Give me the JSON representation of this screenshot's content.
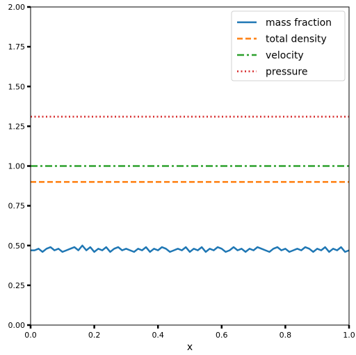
{
  "chart_data": {
    "type": "line",
    "title": "",
    "xlabel": "x",
    "ylabel": "",
    "xlim": [
      0.0,
      1.0
    ],
    "ylim": [
      0.0,
      2.0
    ],
    "xticks": [
      "0.0",
      "0.2",
      "0.4",
      "0.6",
      "0.8",
      "1.0"
    ],
    "yticks": [
      "0.00",
      "0.25",
      "0.50",
      "0.75",
      "1.00",
      "1.25",
      "1.50",
      "1.75",
      "2.00"
    ],
    "grid": false,
    "legend_position": "top-right",
    "series": [
      {
        "name": "mass fraction",
        "color": "#1f77b4",
        "style": "solid",
        "x": [
          0.0,
          0.0125,
          0.025,
          0.0375,
          0.05,
          0.0625,
          0.075,
          0.0875,
          0.1,
          0.1125,
          0.125,
          0.1375,
          0.15,
          0.1625,
          0.175,
          0.1875,
          0.2,
          0.2125,
          0.225,
          0.2375,
          0.25,
          0.2625,
          0.275,
          0.2875,
          0.3,
          0.3125,
          0.325,
          0.3375,
          0.35,
          0.3625,
          0.375,
          0.3875,
          0.4,
          0.4125,
          0.425,
          0.4375,
          0.45,
          0.4625,
          0.475,
          0.4875,
          0.5,
          0.5125,
          0.525,
          0.5375,
          0.55,
          0.5625,
          0.575,
          0.5875,
          0.6,
          0.6125,
          0.625,
          0.6375,
          0.65,
          0.6625,
          0.675,
          0.6875,
          0.7,
          0.7125,
          0.725,
          0.7375,
          0.75,
          0.7625,
          0.775,
          0.7875,
          0.8,
          0.8125,
          0.825,
          0.8375,
          0.85,
          0.8625,
          0.875,
          0.8875,
          0.9,
          0.9125,
          0.925,
          0.9375,
          0.95,
          0.9625,
          0.975,
          0.9875,
          1.0
        ],
        "values": [
          0.47,
          0.47,
          0.48,
          0.46,
          0.48,
          0.49,
          0.47,
          0.48,
          0.46,
          0.47,
          0.48,
          0.49,
          0.47,
          0.5,
          0.47,
          0.49,
          0.46,
          0.48,
          0.47,
          0.49,
          0.46,
          0.48,
          0.49,
          0.47,
          0.48,
          0.47,
          0.46,
          0.48,
          0.47,
          0.49,
          0.46,
          0.48,
          0.47,
          0.49,
          0.48,
          0.46,
          0.47,
          0.48,
          0.47,
          0.49,
          0.46,
          0.48,
          0.47,
          0.49,
          0.46,
          0.48,
          0.47,
          0.49,
          0.48,
          0.46,
          0.47,
          0.49,
          0.47,
          0.48,
          0.46,
          0.48,
          0.47,
          0.49,
          0.48,
          0.47,
          0.46,
          0.48,
          0.49,
          0.47,
          0.48,
          0.46,
          0.47,
          0.48,
          0.47,
          0.49,
          0.48,
          0.46,
          0.48,
          0.47,
          0.49,
          0.46,
          0.48,
          0.47,
          0.49,
          0.46,
          0.47
        ]
      },
      {
        "name": "total density",
        "color": "#ff7f0e",
        "style": "dashed",
        "x": [
          0.0,
          1.0
        ],
        "values": [
          0.9,
          0.9
        ]
      },
      {
        "name": "velocity",
        "color": "#2ca02c",
        "style": "dashdot",
        "x": [
          0.0,
          1.0
        ],
        "values": [
          1.0,
          1.0
        ]
      },
      {
        "name": "pressure",
        "color": "#d62728",
        "style": "dotted",
        "x": [
          0.0,
          0.1,
          0.2,
          0.3,
          0.4,
          0.5,
          0.6,
          0.7,
          0.8,
          0.9,
          1.0
        ],
        "values": [
          1.31,
          1.31,
          1.31,
          1.31,
          1.31,
          1.31,
          1.31,
          1.31,
          1.31,
          1.31,
          1.31
        ]
      }
    ]
  }
}
